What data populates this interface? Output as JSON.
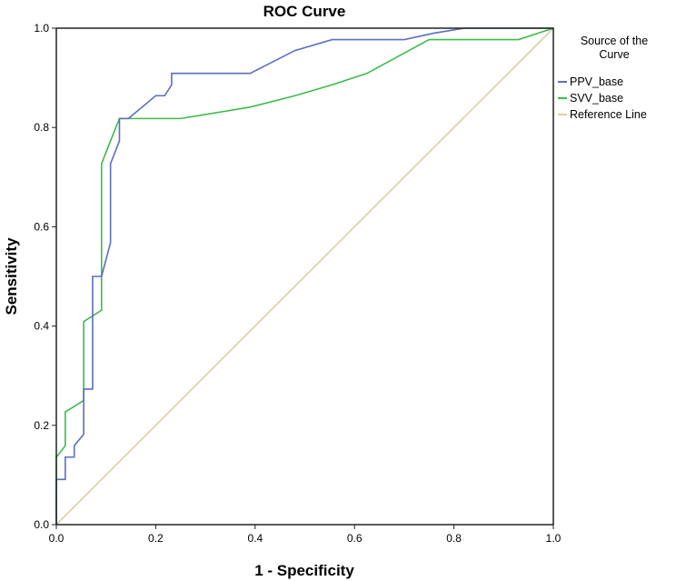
{
  "chart_data": {
    "type": "line",
    "title": "ROC Curve",
    "xlabel": "1 - Specificity",
    "ylabel": "Sensitivity",
    "xlim": [
      0,
      1
    ],
    "ylim": [
      0,
      1
    ],
    "xticks": [
      "0.0",
      "0.2",
      "0.4",
      "0.6",
      "0.8",
      "1.0"
    ],
    "yticks": [
      "0.0",
      "0.2",
      "0.4",
      "0.6",
      "0.8",
      "1.0"
    ],
    "grid": false,
    "legend": {
      "title_line1": "Source of the",
      "title_line2": "Curve",
      "placement": "right"
    },
    "series": [
      {
        "name": "PPV_base",
        "color": "#5a6fc0",
        "points": [
          [
            0,
            0
          ],
          [
            0,
            0.091
          ],
          [
            0.018,
            0.091
          ],
          [
            0.018,
            0.136
          ],
          [
            0.036,
            0.136
          ],
          [
            0.036,
            0.159
          ],
          [
            0.055,
            0.182
          ],
          [
            0.055,
            0.273
          ],
          [
            0.073,
            0.273
          ],
          [
            0.073,
            0.5
          ],
          [
            0.091,
            0.5
          ],
          [
            0.109,
            0.568
          ],
          [
            0.109,
            0.727
          ],
          [
            0.127,
            0.773
          ],
          [
            0.127,
            0.818
          ],
          [
            0.145,
            0.818
          ],
          [
            0.2,
            0.864
          ],
          [
            0.218,
            0.864
          ],
          [
            0.232,
            0.886
          ],
          [
            0.232,
            0.909
          ],
          [
            0.39,
            0.909
          ],
          [
            0.48,
            0.955
          ],
          [
            0.555,
            0.977
          ],
          [
            0.7,
            0.977
          ],
          [
            0.76,
            0.99
          ],
          [
            0.82,
            1
          ],
          [
            1,
            1
          ]
        ]
      },
      {
        "name": "SVV_base",
        "color": "#3dbb4a",
        "points": [
          [
            0,
            0
          ],
          [
            0,
            0.136
          ],
          [
            0.018,
            0.159
          ],
          [
            0.018,
            0.227
          ],
          [
            0.055,
            0.25
          ],
          [
            0.055,
            0.409
          ],
          [
            0.091,
            0.432
          ],
          [
            0.091,
            0.727
          ],
          [
            0.109,
            0.773
          ],
          [
            0.127,
            0.818
          ],
          [
            0.25,
            0.818
          ],
          [
            0.39,
            0.841
          ],
          [
            0.48,
            0.864
          ],
          [
            0.555,
            0.886
          ],
          [
            0.625,
            0.909
          ],
          [
            0.75,
            0.977
          ],
          [
            0.93,
            0.977
          ],
          [
            1,
            1
          ]
        ]
      },
      {
        "name": "Reference Line",
        "color": "#dcd0a0",
        "points": [
          [
            0,
            0
          ],
          [
            1,
            1
          ]
        ]
      }
    ]
  }
}
